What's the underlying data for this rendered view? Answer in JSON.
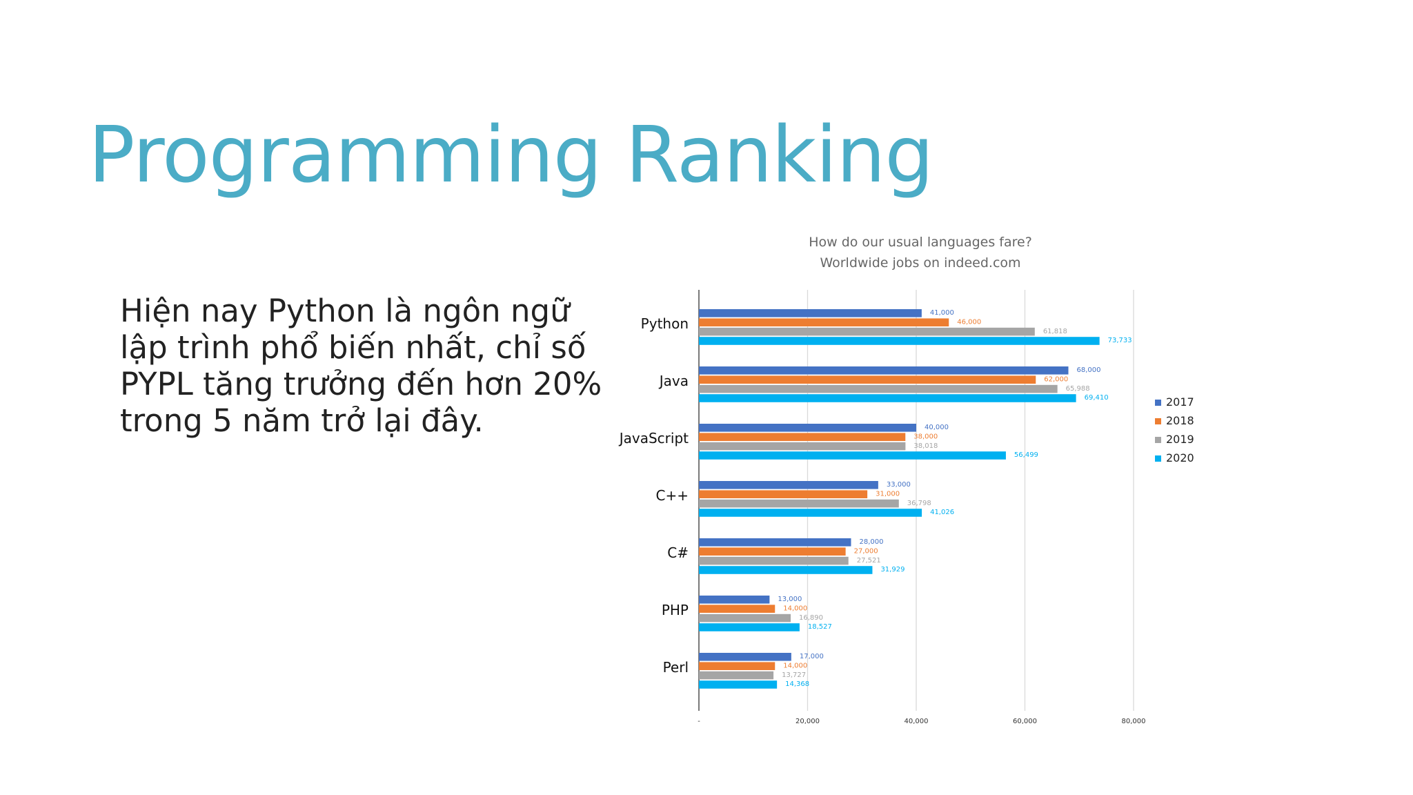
{
  "slide": {
    "title": "Programming Ranking",
    "body": "Hiện nay Python là ngôn ngữ lập trình phổ biến nhất, chỉ số PYPL tăng trưởng đến hơn 20% trong 5 năm trở lại đây."
  },
  "colors": {
    "title": "#4bacc6",
    "series": [
      "#4472c4",
      "#ed7d31",
      "#a5a5a5",
      "#00b0f0"
    ]
  },
  "chart_data": {
    "type": "bar",
    "orientation": "horizontal",
    "title": "How do our usual languages fare?",
    "subtitle": "Worldwide jobs on indeed.com",
    "categories": [
      "Python",
      "Java",
      "JavaScript",
      "C++",
      "C#",
      "PHP",
      "Perl"
    ],
    "series": [
      {
        "name": "2017",
        "values": [
          41000,
          68000,
          40000,
          33000,
          28000,
          13000,
          17000
        ],
        "labels": [
          "41,000",
          "68,000",
          "40,000",
          "33,000",
          "28,000",
          "13,000",
          "17,000"
        ]
      },
      {
        "name": "2018",
        "values": [
          46000,
          62000,
          38000,
          31000,
          27000,
          14000,
          14000
        ],
        "labels": [
          "46,000",
          "62,000",
          "38,000",
          "31,000",
          "27,000",
          "14,000",
          "14,000"
        ]
      },
      {
        "name": "2019",
        "values": [
          61818,
          65988,
          38018,
          36798,
          27521,
          16890,
          13727
        ],
        "labels": [
          "61,818",
          "65,988",
          "38,018",
          "36,798",
          "27,521",
          "16,890",
          "13,727"
        ]
      },
      {
        "name": "2020",
        "values": [
          73733,
          69410,
          56499,
          41026,
          31929,
          18527,
          14368
        ],
        "labels": [
          "73,733",
          "69,410",
          "56,499",
          "41,026",
          "31,929",
          "18,527",
          "14,368"
        ]
      }
    ],
    "xaxis": {
      "min": 0,
      "max": 80000,
      "ticks": [
        0,
        20000,
        40000,
        60000,
        80000
      ],
      "tick_labels": [
        "-",
        "20,000",
        "40,000",
        "60,000",
        "80,000"
      ]
    },
    "grid": true,
    "legend": "right"
  }
}
